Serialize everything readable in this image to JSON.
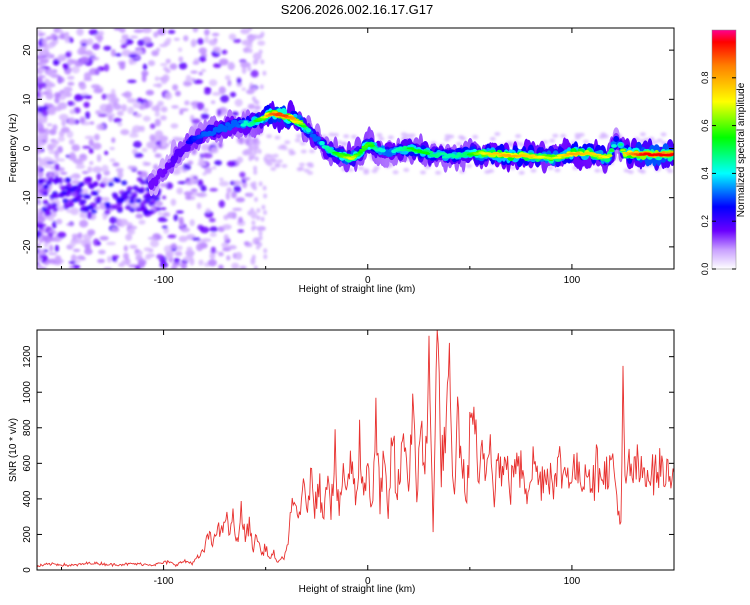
{
  "title": "S206.2026.002.16.17.G17",
  "chart_data": [
    {
      "type": "heatmap",
      "title": "S206.2026.002.16.17.G17",
      "xlabel": "Height of straight line (km)",
      "ylabel": "Frequency (Hz)",
      "xlim": [
        -162,
        150
      ],
      "ylim": [
        -24.5,
        24.5
      ],
      "xticks": [
        -100,
        0,
        100
      ],
      "xtick_labels": [
        "-100",
        "0",
        "100"
      ],
      "yticks": [
        -20,
        -10,
        0,
        10,
        20
      ],
      "ytick_labels": [
        "-20",
        "-10",
        "0",
        "10",
        "20"
      ],
      "colorbar": {
        "label": "Normalized spectral amplitude",
        "range": [
          0,
          1
        ],
        "ticks": [
          0,
          0.2,
          0.4,
          0.6,
          0.8
        ],
        "tick_labels": [
          "0.0",
          "0.2",
          "0.4",
          "0.6",
          "0.8"
        ]
      },
      "ridge": {
        "x": [
          -106,
          -100,
          -95,
          -88,
          -80,
          -72,
          -64,
          -58,
          -52,
          -48,
          -44,
          -40,
          -36,
          -32,
          -28,
          -24,
          -20,
          -16,
          -12,
          -8,
          -4,
          0,
          5,
          10,
          20,
          30,
          40,
          50,
          60,
          70,
          80,
          90,
          100,
          110,
          118,
          122,
          126,
          135,
          150
        ],
        "y": [
          -7,
          -5,
          -2,
          1,
          3,
          4,
          5,
          5,
          6,
          7,
          7,
          6.5,
          6,
          5,
          3,
          1.5,
          0,
          -1,
          -1.5,
          -2,
          -1,
          1,
          0,
          -1,
          0,
          -1,
          -1.5,
          -1,
          -1,
          -1.5,
          -1.5,
          -2,
          -1,
          -1,
          -2,
          2,
          -1,
          -1.2,
          -1.2
        ],
        "amplitude": [
          0.3,
          0.3,
          0.35,
          0.35,
          0.45,
          0.45,
          0.45,
          0.5,
          0.6,
          0.85,
          0.9,
          0.9,
          0.8,
          0.6,
          0.45,
          0.45,
          0.5,
          0.55,
          0.6,
          0.7,
          0.55,
          0.6,
          0.5,
          0.45,
          0.55,
          0.55,
          0.5,
          0.55,
          0.75,
          0.8,
          0.75,
          0.65,
          0.8,
          0.75,
          0.7,
          0.35,
          0.75,
          0.95,
          0.95
        ]
      }
    },
    {
      "type": "line",
      "xlabel": "Height of straight line (km)",
      "ylabel": "SNR (10 * v/v)",
      "xlim": [
        -162,
        150
      ],
      "ylim": [
        0,
        1350
      ],
      "xticks": [
        -100,
        0,
        100
      ],
      "xtick_labels": [
        "-100",
        "0",
        "100"
      ],
      "yticks": [
        0,
        200,
        400,
        600,
        800,
        1000,
        1200
      ],
      "ytick_labels": [
        "0",
        "200",
        "400",
        "600",
        "800",
        "1000",
        "1200"
      ],
      "series": [
        {
          "name": "SNR",
          "color": "#e8312f",
          "x": [
            -162,
            -155,
            -145,
            -135,
            -125,
            -115,
            -105,
            -98,
            -94,
            -90,
            -86,
            -82,
            -80,
            -78,
            -76,
            -74,
            -72,
            -70,
            -68,
            -66,
            -64,
            -62,
            -60,
            -58,
            -56,
            -54,
            -52,
            -50,
            -48,
            -46,
            -44,
            -42,
            -40,
            -38,
            -36,
            -34,
            -32,
            -30,
            -28,
            -26,
            -24,
            -22,
            -20,
            -18,
            -16,
            -14,
            -12,
            -10,
            -8,
            -6,
            -4,
            -2,
            0,
            2,
            4,
            6,
            8,
            10,
            12,
            14,
            16,
            18,
            20,
            22,
            24,
            26,
            28,
            30,
            32,
            34,
            36,
            38,
            40,
            42,
            44,
            46,
            48,
            50,
            52,
            54,
            56,
            58,
            60,
            62,
            64,
            66,
            68,
            70,
            72,
            74,
            76,
            78,
            80,
            82,
            84,
            86,
            88,
            90,
            92,
            94,
            96,
            98,
            100,
            102,
            104,
            106,
            108,
            110,
            112,
            114,
            116,
            118,
            120,
            122,
            124,
            125,
            126,
            128,
            130,
            132,
            134,
            136,
            138,
            140,
            142,
            144,
            146,
            148,
            150
          ],
          "values": [
            20,
            35,
            25,
            40,
            30,
            35,
            30,
            45,
            30,
            50,
            40,
            80,
            120,
            200,
            140,
            260,
            180,
            320,
            210,
            280,
            150,
            320,
            190,
            240,
            120,
            200,
            80,
            140,
            60,
            90,
            40,
            60,
            100,
            260,
            380,
            280,
            480,
            320,
            520,
            380,
            560,
            260,
            600,
            380,
            640,
            300,
            580,
            420,
            680,
            380,
            720,
            420,
            660,
            300,
            780,
            420,
            620,
            260,
            820,
            380,
            560,
            840,
            420,
            980,
            320,
            940,
            520,
            1120,
            280,
            1340,
            620,
            760,
            1020,
            380,
            860,
            660,
            340,
            720,
            960,
            420,
            660,
            540,
            780,
            460,
            640,
            520,
            600,
            470,
            620,
            520,
            580,
            460,
            560,
            600,
            480,
            570,
            520,
            590,
            480,
            600,
            540,
            560,
            520,
            590,
            500,
            560,
            600,
            490,
            570,
            620,
            520,
            560,
            600,
            420,
            220,
            980,
            460,
            580,
            540,
            570,
            520,
            580,
            540,
            560,
            530,
            570,
            540,
            560,
            550
          ]
        }
      ]
    }
  ]
}
